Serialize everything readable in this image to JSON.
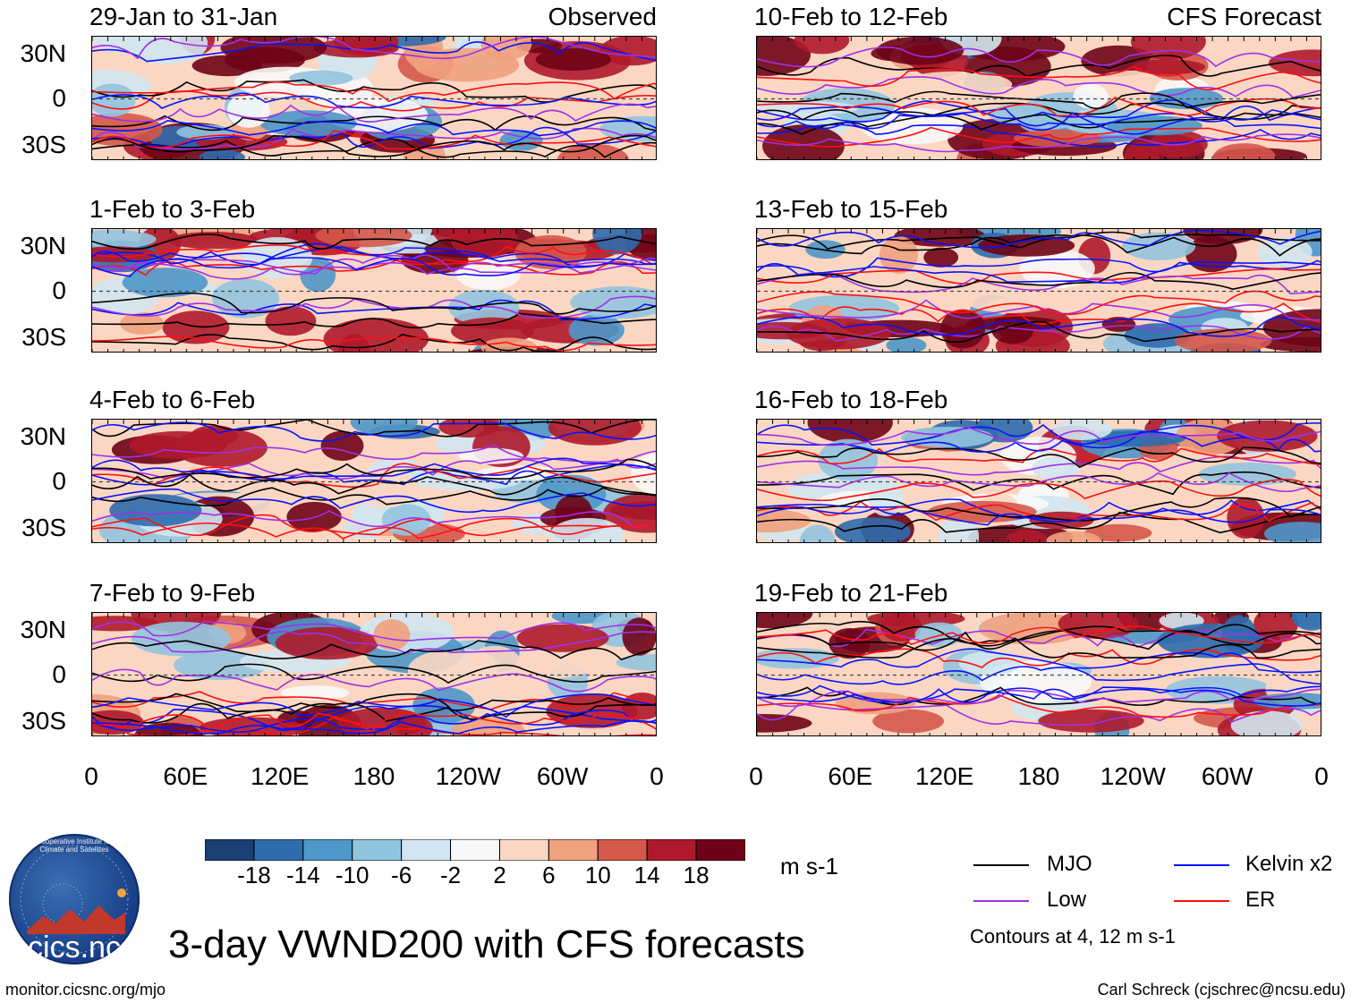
{
  "title": "3-day VWND200 with CFS forecasts",
  "units_label": "m s-1",
  "logo_text": "cics.nc",
  "logo_ring_text": "Cooperative Institute for Climate and Satellites",
  "footer_left": "monitor.cicsnc.org/mjo",
  "footer_right": "Carl Schreck (cjschrec@ncsu.edu)",
  "colorbar": {
    "ticks": [
      "-18",
      "-14",
      "-10",
      "-6",
      "-2",
      "2",
      "6",
      "10",
      "14",
      "18"
    ],
    "colors": [
      "#1b3f72",
      "#2f6cad",
      "#4e97c9",
      "#92c4df",
      "#d2e5f0",
      "#f8f8f8",
      "#fbd7c3",
      "#f0a17e",
      "#d4584b",
      "#ae1a2b",
      "#6e0317"
    ]
  },
  "legend": {
    "items": [
      {
        "label": "MJO",
        "color": "#000000"
      },
      {
        "label": "Kelvin x2",
        "color": "#0a12ff"
      },
      {
        "label": "Low",
        "color": "#a030e8"
      },
      {
        "label": "ER",
        "color": "#ff1010"
      }
    ],
    "note": "Contours at 4, 12 m s-1"
  },
  "chart_data": {
    "type": "heatmap",
    "variable": "VWND200 anomaly",
    "units": "m s-1",
    "contour_levels": [
      4,
      12
    ],
    "lat_ticks": [
      "30N",
      "0",
      "30S"
    ],
    "lon_ticks": [
      "0",
      "60E",
      "120E",
      "180",
      "120W",
      "60W",
      "0"
    ],
    "lat_range": [
      -40,
      40
    ],
    "lon_range": [
      0,
      360
    ],
    "columns": [
      {
        "tag": "Observed",
        "panels": [
          "29-Jan to 31-Jan",
          "1-Feb to 3-Feb",
          "4-Feb to 6-Feb",
          "7-Feb to 9-Feb"
        ]
      },
      {
        "tag": "CFS Forecast",
        "panels": [
          "10-Feb to 12-Feb",
          "13-Feb to 15-Feb",
          "16-Feb to 18-Feb",
          "19-Feb to 21-Feb"
        ]
      }
    ]
  }
}
